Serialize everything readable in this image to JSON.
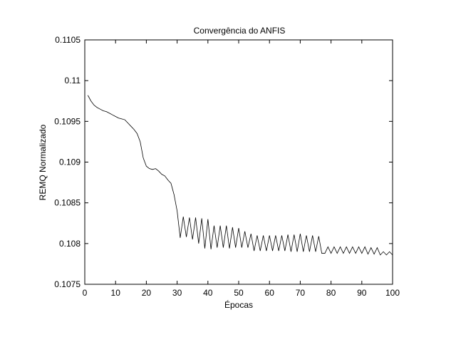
{
  "chart_data": {
    "type": "line",
    "title": "Convergência do ANFIS",
    "xlabel": "Épocas",
    "ylabel": "REMQ Normalizado",
    "xlim": [
      0,
      100
    ],
    "ylim": [
      0.1075,
      0.1105
    ],
    "xticks": [
      0,
      10,
      20,
      30,
      40,
      50,
      60,
      70,
      80,
      90,
      100
    ],
    "yticks": [
      0.1075,
      0.108,
      0.1085,
      0.109,
      0.1095,
      0.11,
      0.1105
    ],
    "xtick_labels": [
      "0",
      "10",
      "20",
      "30",
      "40",
      "50",
      "60",
      "70",
      "80",
      "90",
      "100"
    ],
    "ytick_labels": [
      "0.1075",
      "0.108",
      "0.1085",
      "0.109",
      "0.1095",
      "0.11",
      "0.1105"
    ],
    "grid": false,
    "series": [
      {
        "color": "#000000",
        "x": [
          1,
          2,
          3,
          4,
          5,
          6,
          7,
          8,
          9,
          10,
          11,
          12,
          13,
          14,
          15,
          16,
          17,
          18,
          19,
          20,
          21,
          22,
          23,
          24,
          25,
          26,
          27,
          28,
          29,
          30,
          31,
          32,
          33,
          34,
          35,
          36,
          37,
          38,
          39,
          40,
          41,
          42,
          43,
          44,
          45,
          46,
          47,
          48,
          49,
          50,
          51,
          52,
          53,
          54,
          55,
          56,
          57,
          58,
          59,
          60,
          61,
          62,
          63,
          64,
          65,
          66,
          67,
          68,
          69,
          70,
          71,
          72,
          73,
          74,
          75,
          76,
          77,
          78,
          79,
          80,
          81,
          82,
          83,
          84,
          85,
          86,
          87,
          88,
          89,
          90,
          91,
          92,
          93,
          94,
          95,
          96,
          97,
          98,
          99,
          100
        ],
        "values": [
          0.10982,
          0.10975,
          0.1097,
          0.10967,
          0.10965,
          0.10963,
          0.10962,
          0.1096,
          0.10958,
          0.10956,
          0.10954,
          0.10953,
          0.10952,
          0.10948,
          0.10944,
          0.1094,
          0.10935,
          0.10925,
          0.10905,
          0.10895,
          0.10892,
          0.10891,
          0.10892,
          0.10889,
          0.10885,
          0.10883,
          0.10878,
          0.10874,
          0.1086,
          0.1084,
          0.10807,
          0.10833,
          0.10808,
          0.10832,
          0.10805,
          0.10832,
          0.108,
          0.10831,
          0.10794,
          0.1083,
          0.10793,
          0.10822,
          0.10795,
          0.10822,
          0.10795,
          0.10822,
          0.10794,
          0.1082,
          0.10795,
          0.10819,
          0.10795,
          0.10815,
          0.10795,
          0.10812,
          0.10791,
          0.1081,
          0.10791,
          0.1081,
          0.10791,
          0.1081,
          0.10791,
          0.1081,
          0.10791,
          0.1081,
          0.10791,
          0.10811,
          0.1079,
          0.10811,
          0.1079,
          0.10812,
          0.1079,
          0.1081,
          0.1079,
          0.1081,
          0.1079,
          0.10809,
          0.10788,
          0.10788,
          0.10796,
          0.10788,
          0.10796,
          0.10788,
          0.10796,
          0.10788,
          0.10796,
          0.10788,
          0.10796,
          0.10788,
          0.10796,
          0.10788,
          0.10796,
          0.10787,
          0.10795,
          0.10787,
          0.10795,
          0.10786,
          0.1079,
          0.10786,
          0.1079,
          0.10786
        ]
      }
    ]
  }
}
